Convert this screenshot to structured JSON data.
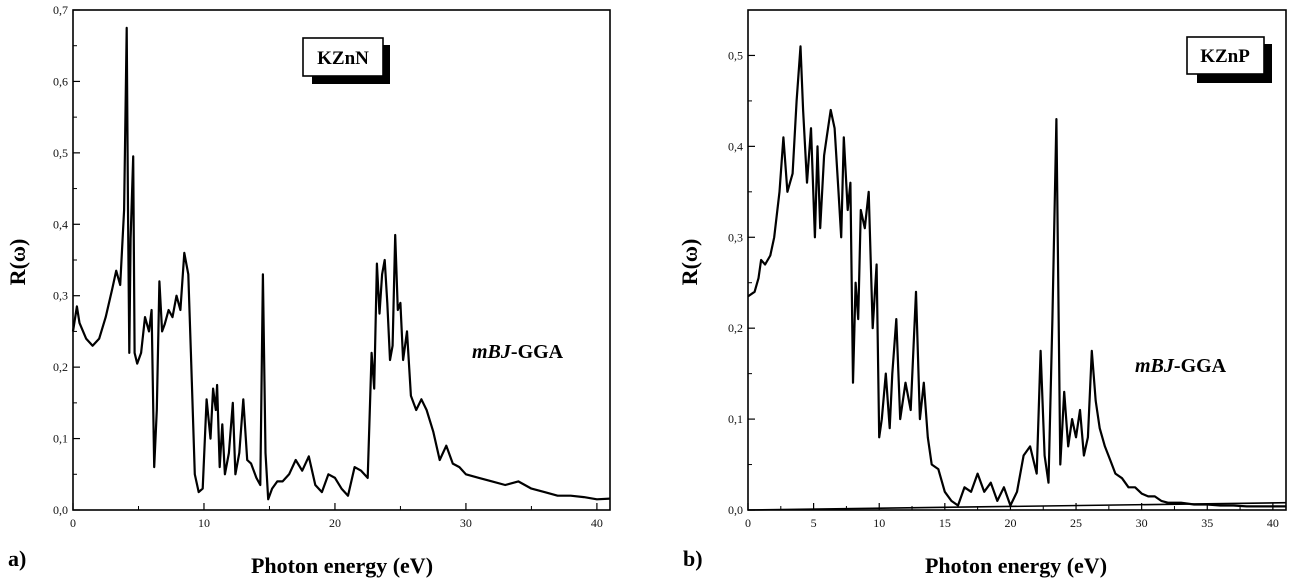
{
  "chart_data": [
    {
      "panel": "a)",
      "type": "line",
      "compound": "KZnN",
      "method_italic": "mBJ",
      "method_rest": "-GGA",
      "xlabel": "Photon energy (eV)",
      "ylabel": "R(ω)",
      "xlim": [
        0,
        41
      ],
      "ylim": [
        0,
        0.7
      ],
      "xticks": [
        0,
        10,
        20,
        30,
        40
      ],
      "xtick_labels": [
        "0",
        "10",
        "20",
        "30",
        "40"
      ],
      "yticks": [
        0,
        0.1,
        0.2,
        0.3,
        0.4,
        0.5,
        0.6,
        0.7
      ],
      "ytick_labels": [
        "0,0",
        "0,1",
        "0,2",
        "0,3",
        "0,4",
        "0,5",
        "0,6",
        "0,7"
      ],
      "grid": false,
      "series": [
        {
          "x": [
            0,
            0.3,
            0.5,
            1.0,
            1.5,
            2.0,
            2.5,
            3.0,
            3.3,
            3.6,
            3.9,
            4.1,
            4.2,
            4.3,
            4.4,
            4.6,
            4.7,
            4.9,
            5.2,
            5.5,
            5.8,
            6.0,
            6.2,
            6.4,
            6.6,
            6.8,
            7.0,
            7.3,
            7.6,
            7.9,
            8.2,
            8.5,
            8.8,
            9.0,
            9.3,
            9.6,
            9.9,
            10.2,
            10.5,
            10.7,
            10.9,
            11.0,
            11.2,
            11.4,
            11.6,
            11.9,
            12.2,
            12.4,
            12.7,
            13.0,
            13.3,
            13.6,
            14.0,
            14.3,
            14.5,
            14.7,
            14.9,
            15.2,
            15.6,
            16.0,
            16.5,
            17.0,
            17.5,
            18.0,
            18.5,
            19.0,
            19.5,
            20.0,
            20.5,
            21.0,
            21.5,
            22.0,
            22.5,
            22.8,
            23.0,
            23.2,
            23.4,
            23.6,
            23.8,
            24.0,
            24.2,
            24.4,
            24.6,
            24.8,
            25.0,
            25.2,
            25.5,
            25.8,
            26.2,
            26.6,
            27.0,
            27.5,
            28.0,
            28.5,
            29.0,
            29.5,
            30.0,
            31.0,
            32.0,
            33.0,
            34.0,
            35.0,
            36.0,
            37.0,
            38.0,
            39.0,
            40.0,
            41.0
          ],
          "y": [
            0.25,
            0.285,
            0.262,
            0.24,
            0.23,
            0.24,
            0.27,
            0.31,
            0.335,
            0.315,
            0.42,
            0.675,
            0.42,
            0.22,
            0.38,
            0.495,
            0.22,
            0.205,
            0.22,
            0.27,
            0.25,
            0.28,
            0.06,
            0.14,
            0.32,
            0.25,
            0.26,
            0.28,
            0.27,
            0.3,
            0.28,
            0.36,
            0.33,
            0.22,
            0.05,
            0.025,
            0.03,
            0.155,
            0.1,
            0.17,
            0.14,
            0.175,
            0.06,
            0.12,
            0.05,
            0.08,
            0.15,
            0.05,
            0.08,
            0.155,
            0.07,
            0.065,
            0.045,
            0.035,
            0.33,
            0.08,
            0.015,
            0.03,
            0.04,
            0.04,
            0.05,
            0.07,
            0.055,
            0.075,
            0.035,
            0.025,
            0.05,
            0.045,
            0.03,
            0.02,
            0.06,
            0.055,
            0.045,
            0.22,
            0.17,
            0.345,
            0.275,
            0.33,
            0.35,
            0.29,
            0.21,
            0.23,
            0.385,
            0.28,
            0.29,
            0.21,
            0.25,
            0.16,
            0.14,
            0.155,
            0.14,
            0.11,
            0.07,
            0.09,
            0.065,
            0.06,
            0.05,
            0.045,
            0.04,
            0.035,
            0.04,
            0.03,
            0.025,
            0.02,
            0.02,
            0.018,
            0.015,
            0.016
          ]
        }
      ]
    },
    {
      "panel": "b)",
      "type": "line",
      "compound": "KZnP",
      "method_italic": "mBJ",
      "method_rest": "-GGA",
      "xlabel": "Photon energy (eV)",
      "ylabel": "R(ω)",
      "xlim": [
        0,
        41
      ],
      "ylim": [
        0,
        0.55
      ],
      "xticks": [
        0,
        5,
        10,
        15,
        20,
        25,
        30,
        35,
        40
      ],
      "xtick_labels": [
        "0",
        "5",
        "10",
        "15",
        "20",
        "25",
        "30",
        "35",
        "40"
      ],
      "yticks": [
        0,
        0.1,
        0.2,
        0.3,
        0.4,
        0.5
      ],
      "ytick_labels": [
        "0,0",
        "0,1",
        "0,2",
        "0,3",
        "0,4",
        "0,5"
      ],
      "grid": false,
      "series": [
        {
          "x": [
            0,
            0.5,
            0.8,
            1.0,
            1.3,
            1.7,
            2.0,
            2.4,
            2.7,
            3.0,
            3.4,
            3.7,
            4.0,
            4.2,
            4.5,
            4.8,
            5.1,
            5.3,
            5.5,
            5.8,
            6.0,
            6.3,
            6.6,
            6.9,
            7.1,
            7.3,
            7.6,
            7.8,
            8.0,
            8.2,
            8.4,
            8.6,
            8.9,
            9.2,
            9.5,
            9.8,
            10.0,
            10.2,
            10.5,
            10.8,
            11.0,
            11.3,
            11.6,
            12.0,
            12.4,
            12.8,
            13.1,
            13.4,
            13.7,
            14.0,
            14.5,
            15.0,
            15.5,
            16.0,
            16.5,
            17.0,
            17.5,
            18.0,
            18.5,
            19.0,
            19.5,
            20.0,
            20.5,
            21.0,
            21.5,
            22.0,
            22.3,
            22.6,
            22.9,
            23.2,
            23.5,
            23.8,
            24.1,
            24.4,
            24.7,
            25.0,
            25.3,
            25.6,
            25.9,
            26.2,
            26.5,
            26.8,
            27.2,
            27.6,
            28.0,
            28.5,
            29.0,
            29.5,
            30.0,
            30.5,
            31.0,
            31.5,
            32.0,
            33.0,
            34.0,
            35.0,
            36.0,
            37.0,
            38.0,
            39.0,
            40.0,
            41.0
          ],
          "y": [
            0.235,
            0.24,
            0.255,
            0.275,
            0.27,
            0.28,
            0.3,
            0.35,
            0.41,
            0.35,
            0.37,
            0.45,
            0.51,
            0.44,
            0.36,
            0.42,
            0.3,
            0.4,
            0.31,
            0.39,
            0.41,
            0.44,
            0.42,
            0.35,
            0.3,
            0.41,
            0.33,
            0.36,
            0.14,
            0.25,
            0.21,
            0.33,
            0.31,
            0.35,
            0.2,
            0.27,
            0.08,
            0.1,
            0.15,
            0.09,
            0.15,
            0.21,
            0.1,
            0.14,
            0.11,
            0.24,
            0.1,
            0.14,
            0.08,
            0.05,
            0.045,
            0.02,
            0.01,
            0.005,
            0.025,
            0.02,
            0.04,
            0.02,
            0.03,
            0.01,
            0.025,
            0.005,
            0.02,
            0.06,
            0.07,
            0.04,
            0.175,
            0.06,
            0.03,
            0.21,
            0.43,
            0.05,
            0.13,
            0.07,
            0.1,
            0.08,
            0.11,
            0.06,
            0.08,
            0.175,
            0.12,
            0.09,
            0.07,
            0.055,
            0.04,
            0.035,
            0.025,
            0.025,
            0.018,
            0.015,
            0.015,
            0.01,
            0.008,
            0.008,
            0.006,
            0.006,
            0.005,
            0.005,
            0.004,
            0.004,
            0.004,
            0.004
          ]
        },
        {
          "x": [
            0,
            41
          ],
          "y": [
            0.0,
            0.008
          ]
        }
      ]
    }
  ]
}
